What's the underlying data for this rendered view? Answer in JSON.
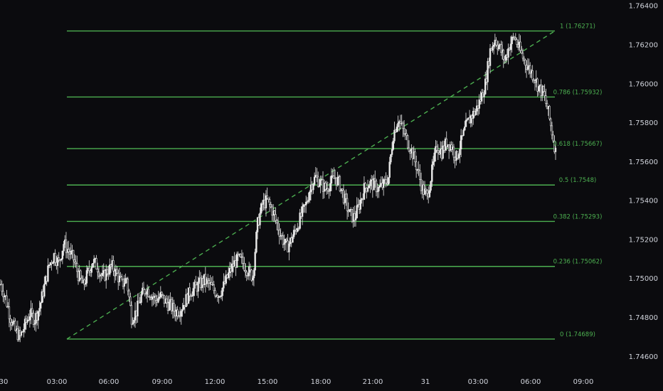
{
  "chart_data": {
    "type": "candlestick",
    "title": "",
    "xlabel": "",
    "ylabel": "",
    "ylim": [
      1.7455,
      1.7643
    ],
    "grid": false,
    "x_ticks": [
      "30",
      "03:00",
      "06:00",
      "09:00",
      "12:00",
      "15:00",
      "18:00",
      "21:00",
      "31",
      "03:00",
      "06:00",
      "09:00"
    ],
    "y_ticks": [
      "1.76400",
      "1.76200",
      "1.76000",
      "1.75800",
      "1.75600",
      "1.75400",
      "1.75200",
      "1.75000",
      "1.74800",
      "1.74600"
    ],
    "y_tick_values": [
      1.764,
      1.762,
      1.76,
      1.758,
      1.756,
      1.754,
      1.752,
      1.75,
      1.748,
      1.746
    ],
    "fib_retracement": {
      "color": "#4caf50",
      "levels": [
        {
          "ratio": "1",
          "price": 1.76271,
          "label": "1 (1.76271)"
        },
        {
          "ratio": "0.786",
          "price": 1.75932,
          "label": "0.786 (1.75932)"
        },
        {
          "ratio": "0.618",
          "price": 1.75667,
          "label": "0.618 (1.75667)"
        },
        {
          "ratio": "0.5",
          "price": 1.7548,
          "label": "0.5 (1.7548)"
        },
        {
          "ratio": "0.382",
          "price": 1.75293,
          "label": "0.382 (1.75293)"
        },
        {
          "ratio": "0.236",
          "price": 1.75062,
          "label": "0.236 (1.75062)"
        },
        {
          "ratio": "0",
          "price": 1.74689,
          "label": "0 (1.74689)"
        }
      ]
    },
    "price_path": [
      [
        0,
        1.7497
      ],
      [
        4,
        1.749
      ],
      [
        8,
        1.748
      ],
      [
        12,
        1.7473
      ],
      [
        16,
        1.747
      ],
      [
        20,
        1.7476
      ],
      [
        24,
        1.7482
      ],
      [
        28,
        1.7479
      ],
      [
        32,
        1.7485
      ],
      [
        36,
        1.7496
      ],
      [
        40,
        1.7507
      ],
      [
        44,
        1.7512
      ],
      [
        48,
        1.7508
      ],
      [
        52,
        1.7518
      ],
      [
        56,
        1.7514
      ],
      [
        60,
        1.751
      ],
      [
        64,
        1.7502
      ],
      [
        68,
        1.7496
      ],
      [
        72,
        1.7503
      ],
      [
        76,
        1.7509
      ],
      [
        80,
        1.7506
      ],
      [
        84,
        1.75
      ],
      [
        88,
        1.7504
      ],
      [
        92,
        1.7506
      ],
      [
        96,
        1.7502
      ],
      [
        100,
        1.7497
      ],
      [
        104,
        1.75
      ],
      [
        108,
        1.748
      ],
      [
        112,
        1.7483
      ],
      [
        116,
        1.7491
      ],
      [
        120,
        1.7495
      ],
      [
        124,
        1.7492
      ],
      [
        128,
        1.7489
      ],
      [
        132,
        1.7491
      ],
      [
        136,
        1.7488
      ],
      [
        140,
        1.7486
      ],
      [
        144,
        1.7483
      ],
      [
        148,
        1.7484
      ],
      [
        152,
        1.7488
      ],
      [
        156,
        1.7493
      ],
      [
        160,
        1.7495
      ],
      [
        164,
        1.7497
      ],
      [
        168,
        1.7499
      ],
      [
        172,
        1.7497
      ],
      [
        176,
        1.7494
      ],
      [
        180,
        1.7492
      ],
      [
        184,
        1.7496
      ],
      [
        188,
        1.7502
      ],
      [
        192,
        1.7507
      ],
      [
        196,
        1.751
      ],
      [
        200,
        1.7508
      ],
      [
        204,
        1.7504
      ],
      [
        208,
        1.7501
      ],
      [
        212,
        1.7528
      ],
      [
        216,
        1.7538
      ],
      [
        220,
        1.754
      ],
      [
        224,
        1.7535
      ],
      [
        228,
        1.7528
      ],
      [
        232,
        1.7521
      ],
      [
        236,
        1.7516
      ],
      [
        240,
        1.752
      ],
      [
        244,
        1.7526
      ],
      [
        248,
        1.7532
      ],
      [
        252,
        1.7538
      ],
      [
        256,
        1.7548
      ],
      [
        260,
        1.7552
      ],
      [
        264,
        1.7549
      ],
      [
        268,
        1.7546
      ],
      [
        272,
        1.7549
      ],
      [
        276,
        1.7552
      ],
      [
        280,
        1.7548
      ],
      [
        284,
        1.754
      ],
      [
        288,
        1.7533
      ],
      [
        292,
        1.7531
      ],
      [
        296,
        1.7538
      ],
      [
        300,
        1.7546
      ],
      [
        304,
        1.7549
      ],
      [
        308,
        1.7548
      ],
      [
        312,
        1.7546
      ],
      [
        316,
        1.7548
      ],
      [
        320,
        1.7552
      ],
      [
        324,
        1.7574
      ],
      [
        328,
        1.7582
      ],
      [
        332,
        1.7576
      ],
      [
        336,
        1.757
      ],
      [
        340,
        1.7564
      ],
      [
        344,
        1.7556
      ],
      [
        348,
        1.7546
      ],
      [
        352,
        1.7542
      ],
      [
        356,
        1.7555
      ],
      [
        360,
        1.7568
      ],
      [
        364,
        1.7565
      ],
      [
        368,
        1.757
      ],
      [
        372,
        1.7568
      ],
      [
        376,
        1.7562
      ],
      [
        380,
        1.757
      ],
      [
        384,
        1.7578
      ],
      [
        388,
        1.7583
      ],
      [
        392,
        1.7586
      ],
      [
        396,
        1.7592
      ],
      [
        400,
        1.76
      ],
      [
        404,
        1.7617
      ],
      [
        408,
        1.7623
      ],
      [
        412,
        1.7618
      ],
      [
        416,
        1.7612
      ],
      [
        420,
        1.762
      ],
      [
        424,
        1.7624
      ],
      [
        428,
        1.7618
      ],
      [
        432,
        1.7612
      ],
      [
        436,
        1.7608
      ],
      [
        440,
        1.7604
      ],
      [
        444,
        1.7598
      ],
      [
        448,
        1.7595
      ],
      [
        452,
        1.7585
      ],
      [
        456,
        1.7572
      ],
      [
        458,
        1.7565
      ]
    ]
  }
}
